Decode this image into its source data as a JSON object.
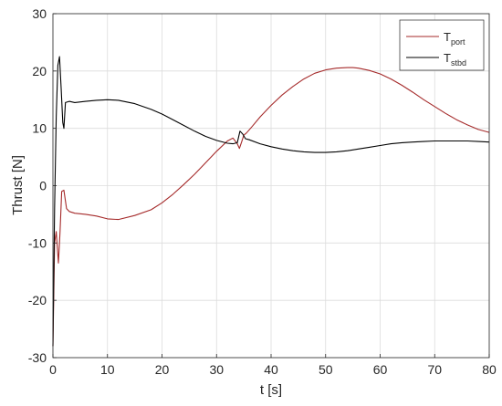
{
  "chart_data": {
    "type": "line",
    "xlabel": "t [s]",
    "ylabel": "Thrust [N]",
    "xlim": [
      0,
      80
    ],
    "ylim": [
      -30,
      30
    ],
    "xticks": [
      0,
      10,
      20,
      30,
      40,
      50,
      60,
      70,
      80
    ],
    "yticks": [
      -30,
      -20,
      -10,
      0,
      10,
      20,
      30
    ],
    "grid": true,
    "legend_position": "top-right",
    "legend": [
      {
        "base": "T",
        "sub": "port"
      },
      {
        "base": "T",
        "sub": "stbd"
      }
    ],
    "series": [
      {
        "name": "T_port",
        "color": "#a52a2a",
        "x": [
          0,
          0.3,
          0.6,
          1.0,
          1.3,
          1.6,
          2.0,
          2.5,
          3.0,
          4.0,
          6.0,
          8.0,
          10.0,
          12.0,
          15.0,
          18.0,
          20.0,
          22.0,
          24.0,
          26.0,
          28.0,
          30.0,
          32.0,
          33.0,
          33.8,
          34.2,
          34.6,
          35.0,
          35.5,
          36.5,
          38.0,
          40.0,
          42.0,
          44.0,
          46.0,
          48.0,
          50.0,
          52.0,
          54.0,
          55.0,
          56.0,
          58.0,
          60.0,
          62.0,
          64.0,
          66.0,
          68.0,
          70.0,
          72.0,
          74.0,
          76.0,
          78.0,
          80.0
        ],
        "y": [
          -28,
          -10,
          -8,
          -13.5,
          -8,
          -1,
          -0.8,
          -4.0,
          -4.5,
          -4.8,
          -5.0,
          -5.3,
          -5.8,
          -5.9,
          -5.2,
          -4.2,
          -3.0,
          -1.5,
          0.2,
          2.0,
          4.0,
          6.0,
          7.8,
          8.3,
          7.3,
          6.5,
          7.6,
          8.8,
          9.2,
          10.3,
          12.0,
          14.0,
          15.8,
          17.3,
          18.6,
          19.6,
          20.2,
          20.5,
          20.6,
          20.6,
          20.5,
          20.1,
          19.5,
          18.6,
          17.5,
          16.3,
          15.0,
          13.8,
          12.6,
          11.5,
          10.6,
          9.8,
          9.3
        ]
      },
      {
        "name": "T_stbd",
        "color": "#000000",
        "x": [
          0,
          0.3,
          0.6,
          0.9,
          1.2,
          1.5,
          1.8,
          2.0,
          2.3,
          3.0,
          4.0,
          6.0,
          8.0,
          10.0,
          12.0,
          15.0,
          18.0,
          20.0,
          22.0,
          24.0,
          26.0,
          28.0,
          30.0,
          32.0,
          33.0,
          33.8,
          34.3,
          34.8,
          35.3,
          36.0,
          38.0,
          40.0,
          42.0,
          44.0,
          46.0,
          48.0,
          50.0,
          52.0,
          54.0,
          56.0,
          58.0,
          60.0,
          62.0,
          64.0,
          66.0,
          68.0,
          70.0,
          72.0,
          74.0,
          76.0,
          78.0,
          80.0
        ],
        "y": [
          -28,
          -4,
          12,
          21,
          22.5,
          17,
          11,
          10,
          14.5,
          14.7,
          14.5,
          14.7,
          14.9,
          15.0,
          14.9,
          14.3,
          13.3,
          12.5,
          11.5,
          10.5,
          9.5,
          8.6,
          7.9,
          7.4,
          7.3,
          7.5,
          9.5,
          9.0,
          8.2,
          8.0,
          7.3,
          6.8,
          6.4,
          6.1,
          5.9,
          5.8,
          5.8,
          5.9,
          6.1,
          6.4,
          6.7,
          7.0,
          7.3,
          7.5,
          7.6,
          7.7,
          7.8,
          7.8,
          7.8,
          7.8,
          7.7,
          7.6
        ]
      }
    ]
  }
}
